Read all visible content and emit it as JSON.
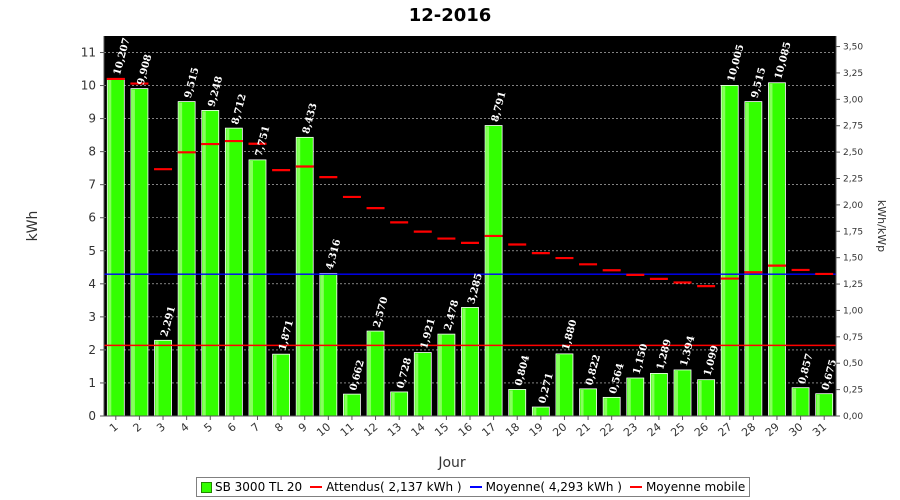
{
  "chart_data": {
    "type": "bar",
    "title": "12-2016",
    "xlabel": "Jour",
    "ylabel": "kWh",
    "ylabel_right": "kWh/kWp",
    "ylim": [
      0,
      11.5
    ],
    "ylim_right": [
      0,
      3.6
    ],
    "y_ticks": [
      "0",
      "1",
      "2",
      "3",
      "4",
      "5",
      "6",
      "7",
      "8",
      "9",
      "10",
      "11"
    ],
    "y_ticks_right": [
      "0,00",
      "0,25",
      "0,50",
      "0,75",
      "1,00",
      "1,25",
      "1,50",
      "1,75",
      "2,00",
      "2,25",
      "2,50",
      "2,75",
      "3,00",
      "3,25",
      "3,50"
    ],
    "categories": [
      "1",
      "2",
      "3",
      "4",
      "5",
      "6",
      "7",
      "8",
      "9",
      "10",
      "11",
      "12",
      "13",
      "14",
      "15",
      "16",
      "17",
      "18",
      "19",
      "20",
      "21",
      "22",
      "23",
      "24",
      "25",
      "26",
      "27",
      "28",
      "29",
      "30",
      "31"
    ],
    "series": [
      {
        "name": "SB 3000 TL 20",
        "color": "#33ff00",
        "values": [
          10.207,
          9.908,
          2.291,
          9.515,
          9.248,
          8.712,
          7.751,
          1.871,
          8.433,
          4.316,
          0.662,
          2.57,
          0.728,
          1.921,
          2.478,
          3.285,
          8.791,
          0.804,
          0.271,
          1.88,
          0.822,
          0.564,
          1.15,
          1.289,
          1.394,
          1.099,
          10.005,
          9.515,
          10.085,
          0.857,
          0.675
        ],
        "labels": [
          "10,207",
          "9,908",
          "2,291",
          "9,515",
          "9,248",
          "8,712",
          "7,751",
          "1,871",
          "8,433",
          "4,316",
          "0,662",
          "2,570",
          "0,728",
          "1,921",
          "2,478",
          "3,285",
          "8,791",
          "0,804",
          "0,271",
          "1,880",
          "0,822",
          "0,564",
          "1,150",
          "1,289",
          "1,394",
          "1,099",
          "10,005",
          "9,515",
          "10,085",
          "0,857",
          "0,675"
        ]
      },
      {
        "name": "Moyenne mobile",
        "color": "#ff0000",
        "values": [
          10.2,
          10.06,
          7.47,
          7.98,
          8.23,
          8.32,
          8.24,
          7.44,
          7.55,
          7.23,
          6.63,
          6.29,
          5.86,
          5.58,
          5.37,
          5.24,
          5.45,
          5.19,
          4.93,
          4.78,
          4.59,
          4.41,
          4.27,
          4.15,
          4.04,
          3.93,
          4.16,
          4.35,
          4.55,
          4.42,
          4.3
        ]
      }
    ],
    "reference_lines": [
      {
        "name": "Attendus( 2,137 kWh )",
        "value": 2.137,
        "color": "#ff0000"
      },
      {
        "name": "Moyenne( 4,293 kWh )",
        "value": 4.293,
        "color": "#0000ff"
      }
    ],
    "legend": {
      "placement": "bottom",
      "items": [
        "SB 3000 TL 20",
        "Attendus( 2,137 kWh )",
        "Moyenne( 4,293 kWh )",
        "Moyenne mobile"
      ]
    },
    "background": "#000000",
    "grid": true
  }
}
